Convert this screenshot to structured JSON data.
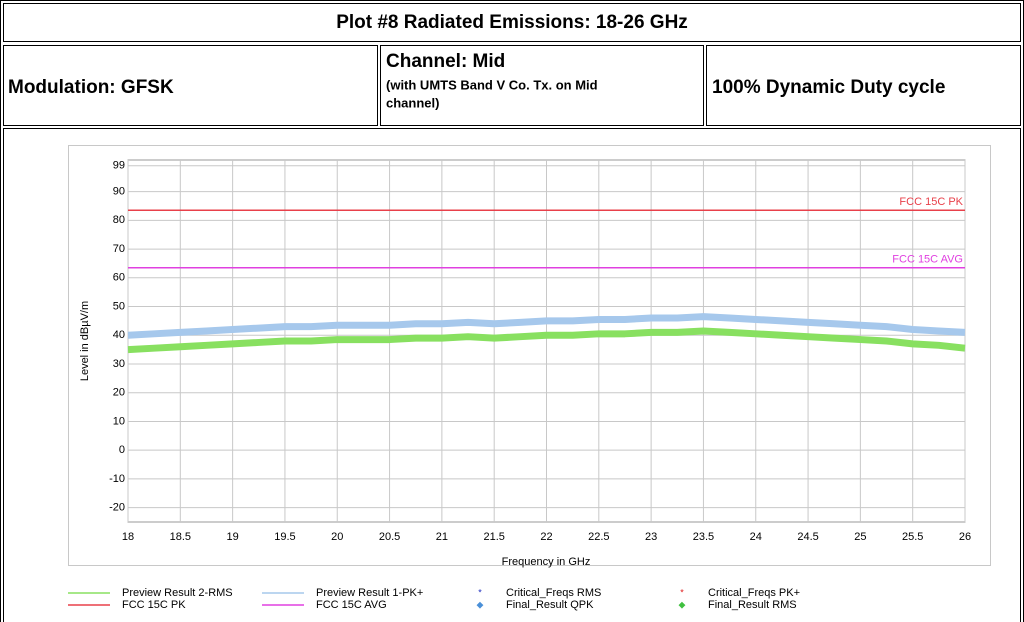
{
  "header": {
    "title": "Plot #8 Radiated Emissions: 18-26 GHz",
    "modulation": "Modulation: GFSK",
    "channel": "Channel: Mid",
    "channel_note": [
      "(with UMTS Band V Co. Tx. on Mid",
      "channel)"
    ],
    "duty": "100% Dynamic Duty cycle"
  },
  "chart_data": {
    "type": "line",
    "xlabel": "Frequency in GHz",
    "ylabel": "Level in dBµV/m",
    "x": [
      18,
      18.25,
      18.5,
      18.75,
      19,
      19.25,
      19.5,
      19.75,
      20,
      20.25,
      20.5,
      20.75,
      21,
      21.25,
      21.5,
      21.75,
      22,
      22.25,
      22.5,
      22.75,
      23,
      23.25,
      23.5,
      23.75,
      24,
      24.25,
      24.5,
      24.75,
      25,
      25.25,
      25.5,
      25.75,
      26
    ],
    "series": [
      {
        "name": "Preview Result 1-PK+",
        "color": "#a6c8ec",
        "values": [
          40,
          40.5,
          41,
          41.5,
          42,
          42.5,
          43,
          43,
          43.5,
          43.5,
          43.5,
          44,
          44,
          44.5,
          44,
          44.5,
          45,
          45,
          45.5,
          45.5,
          46,
          46,
          46.5,
          46,
          45.5,
          45,
          44.5,
          44,
          43.5,
          43,
          42,
          41.5,
          41
        ]
      },
      {
        "name": "Preview Result 2-RMS",
        "color": "#88e060",
        "values": [
          35,
          35.5,
          36,
          36.5,
          37,
          37.5,
          38,
          38,
          38.5,
          38.5,
          38.5,
          39,
          39,
          39.5,
          39,
          39.5,
          40,
          40,
          40.5,
          40.5,
          41,
          41,
          41.5,
          41,
          40.5,
          40,
          39.5,
          39,
          38.5,
          38,
          37,
          36.5,
          35.5
        ]
      }
    ],
    "limits": [
      {
        "name": "FCC 15C PK",
        "color": "#e8404a",
        "value": 83.5
      },
      {
        "name": "FCC 15C AVG",
        "color": "#e040e0",
        "value": 63.5
      }
    ],
    "markers": [
      {
        "name": "Critical_Freqs RMS",
        "color": "#2030c0",
        "symbol": "*"
      },
      {
        "name": "Critical_Freqs PK+",
        "color": "#e02020",
        "symbol": "*"
      },
      {
        "name": "Final_Result QPK",
        "color": "#4a90d8",
        "symbol": "◆"
      },
      {
        "name": "Final_Result RMS",
        "color": "#40c040",
        "symbol": "◆"
      }
    ],
    "xlim": [
      18,
      26
    ],
    "xticks": [
      18,
      18.5,
      19,
      19.5,
      20,
      20.5,
      21,
      21.5,
      22,
      22.5,
      23,
      23.5,
      24,
      24.5,
      25,
      25.5,
      26
    ],
    "ylim": [
      -25,
      101
    ],
    "yticks": [
      99,
      90,
      80,
      70,
      60,
      50,
      40,
      30,
      20,
      10,
      0,
      -10,
      -20
    ],
    "grid": true
  }
}
